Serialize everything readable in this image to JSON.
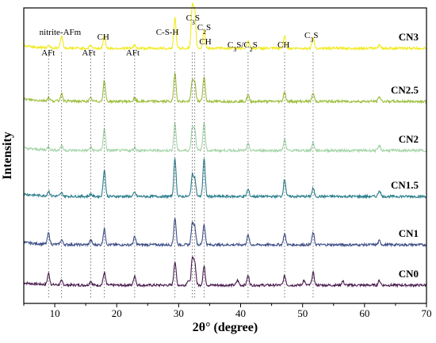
{
  "chart_data": {
    "type": "line",
    "xlabel": "2θ° (degree)",
    "ylabel": "Intensity",
    "xlim": [
      5,
      70
    ],
    "xticks": [
      "10",
      "20",
      "30",
      "40",
      "50",
      "60",
      "70"
    ],
    "grid": false,
    "legend": "none",
    "series": [
      {
        "name": "CN0",
        "color": "#4a1b4f"
      },
      {
        "name": "CN1",
        "color": "#3e4f88"
      },
      {
        "name": "CN1.5",
        "color": "#2a7d8c"
      },
      {
        "name": "CN2",
        "color": "#a3d4a6"
      },
      {
        "name": "CN2.5",
        "color": "#9bbd3a"
      },
      {
        "name": "CN3",
        "color": "#f0ea1e"
      }
    ],
    "peaks": [
      {
        "x": 9.0,
        "label": "AFt"
      },
      {
        "x": 11.1,
        "label": "nitrite-AFm"
      },
      {
        "x": 15.8,
        "label": "AFt"
      },
      {
        "x": 18.0,
        "label": "CH"
      },
      {
        "x": 22.9,
        "label": "AFt"
      },
      {
        "x": 29.4,
        "label": "C-S-H"
      },
      {
        "x": 32.2,
        "label": "C3S"
      },
      {
        "x": 32.6,
        "label": "C2S"
      },
      {
        "x": 34.1,
        "label": "CH"
      },
      {
        "x": 41.2,
        "label": "C3S/C2S"
      },
      {
        "x": 47.1,
        "label": "CH"
      },
      {
        "x": 51.7,
        "label": "C3S"
      }
    ]
  }
}
